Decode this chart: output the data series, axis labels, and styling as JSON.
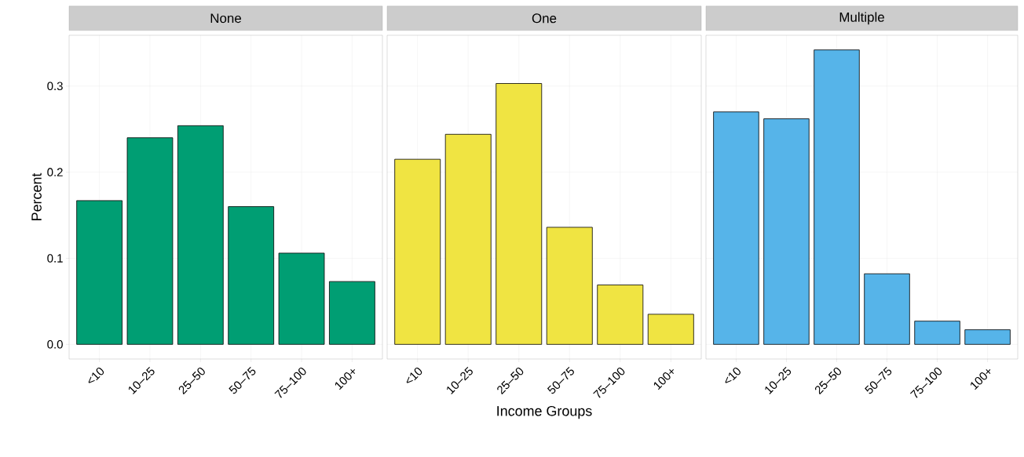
{
  "chart_data": [
    {
      "type": "bar",
      "title": "None",
      "ylabel": "Percent",
      "categories": [
        "<10",
        "10–25",
        "25–50",
        "50–75",
        "75–100",
        "100+"
      ],
      "values": [
        0.167,
        0.24,
        0.254,
        0.16,
        0.106,
        0.073
      ],
      "color": "#009e73",
      "ylim": [
        -0.017,
        0.359
      ],
      "yticks": [
        {
          "value": 0,
          "label": "0.0"
        },
        {
          "value": 0.1,
          "label": "0.1"
        },
        {
          "value": 0.2,
          "label": "0.2"
        },
        {
          "value": 0.3,
          "label": "0.3"
        }
      ],
      "grid": true
    },
    {
      "type": "bar",
      "title": "One",
      "xlabel": "Income Groups",
      "categories": [
        "<10",
        "10–25",
        "25–50",
        "50–75",
        "75–100",
        "100+"
      ],
      "values": [
        0.215,
        0.244,
        0.303,
        0.136,
        0.069,
        0.035
      ],
      "color": "#f0e442",
      "ylim": [
        -0.017,
        0.359
      ],
      "yticks": [
        {
          "value": 0,
          "label": null
        },
        {
          "value": 0.1,
          "label": null
        },
        {
          "value": 0.2,
          "label": null
        },
        {
          "value": 0.3,
          "label": null
        }
      ],
      "grid": true,
      "tick_labels": "x"
    },
    {
      "type": "bar",
      "title": "Multiple",
      "categories": [
        "<10",
        "10–25",
        "25–50",
        "50–75",
        "75–100",
        "100+"
      ],
      "values": [
        0.27,
        0.262,
        0.342,
        0.082,
        0.027,
        0.017
      ],
      "color": "#56b4e9",
      "ylim": [
        -0.017,
        0.359
      ],
      "yticks": [
        {
          "value": 0,
          "label": null
        },
        {
          "value": 0.1,
          "label": null
        },
        {
          "value": 0.2,
          "label": null
        },
        {
          "value": 0.3,
          "label": null
        }
      ],
      "grid": true,
      "tick_labels": "x"
    }
  ]
}
